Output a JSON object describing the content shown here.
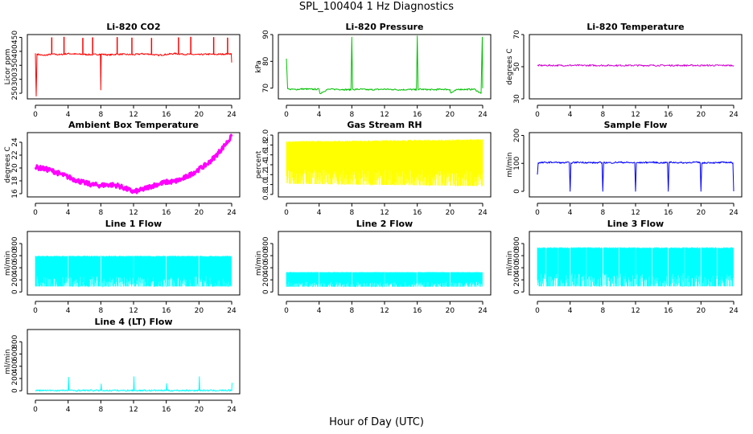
{
  "page": {
    "title": "SPL_100404  1 Hz Diagnostics",
    "xlabel": "Hour of Day (UTC)"
  },
  "chart_data": [
    {
      "type": "line",
      "title": "Li-820 CO2",
      "ylabel": "Licor ppm",
      "color": "#ff0000",
      "xlim": [
        0,
        24
      ],
      "xticks": [
        0,
        4,
        8,
        12,
        16,
        20,
        24
      ],
      "ylim": [
        230,
        460
      ],
      "yticks": [
        250,
        300,
        350,
        400,
        450
      ],
      "x": [
        0,
        0.1,
        0.2,
        1,
        2,
        3,
        4,
        5,
        6,
        7,
        7.95,
        8,
        8.05,
        9,
        10,
        11,
        12,
        13,
        14,
        15,
        16,
        17,
        18,
        19,
        20,
        21,
        22,
        23,
        23.95,
        24
      ],
      "y": [
        393,
        240,
        390,
        385,
        390,
        388,
        392,
        390,
        389,
        388,
        390,
        262,
        390,
        387,
        390,
        389,
        388,
        391,
        390,
        386,
        389,
        392,
        390,
        389,
        388,
        390,
        389,
        390,
        392,
        360
      ],
      "spikes_x": [
        2,
        3.5,
        5.8,
        7,
        10,
        11.8,
        14.2,
        17.5,
        19,
        21.8,
        23.5
      ],
      "spikes_y": [
        450,
        452,
        448,
        450,
        451,
        449,
        448,
        450,
        452,
        451,
        449
      ]
    },
    {
      "type": "line",
      "title": "Li-820 Pressure",
      "ylabel": "kPa",
      "color": "#00c000",
      "xlim": [
        0,
        24
      ],
      "xticks": [
        0,
        4,
        8,
        12,
        16,
        20,
        24
      ],
      "ylim": [
        66,
        90
      ],
      "yticks": [
        70,
        80,
        90
      ],
      "x": [
        0,
        0.15,
        0.3,
        1,
        2,
        3,
        4,
        4.1,
        5,
        6,
        7,
        7.9,
        8,
        8.1,
        9,
        10,
        11,
        12,
        13,
        14,
        15,
        15.9,
        16,
        16.1,
        17,
        18,
        19,
        20,
        20.1,
        21,
        22,
        23,
        23.8,
        23.95,
        24
      ],
      "y": [
        81,
        69.8,
        69.6,
        69.5,
        69.7,
        69.6,
        69.6,
        68,
        69.5,
        69.6,
        69.5,
        69.4,
        89,
        69.5,
        69.6,
        69.4,
        69.5,
        69.6,
        69.5,
        69.4,
        69.5,
        69.4,
        89.5,
        69.6,
        69.5,
        69.4,
        69.6,
        69.5,
        68.2,
        69.6,
        69.5,
        69.6,
        68,
        89,
        70
      ]
    },
    {
      "type": "line",
      "title": "Li-820 Temperature",
      "ylabel": "degrees C",
      "color": "#d000d0",
      "xlim": [
        0,
        24
      ],
      "xticks": [
        0,
        4,
        8,
        12,
        16,
        20,
        24
      ],
      "ylim": [
        30,
        70
      ],
      "yticks": [
        30,
        50,
        70
      ],
      "x": [
        0,
        24
      ],
      "y": [
        50.8,
        50.8
      ]
    },
    {
      "type": "line",
      "title": "Ambient Box Temperature",
      "ylabel": "degrees C",
      "color": "#ff00ff",
      "xlim": [
        0,
        24
      ],
      "xticks": [
        0,
        4,
        8,
        12,
        16,
        20,
        24
      ],
      "ylim": [
        15.5,
        25.5
      ],
      "yticks": [
        16,
        18,
        20,
        22,
        24
      ],
      "x": [
        0,
        1,
        2,
        3,
        4,
        5,
        6,
        7,
        8,
        9,
        10,
        11,
        12,
        13,
        14,
        15,
        16,
        17,
        18,
        19,
        20,
        21,
        22,
        23,
        24
      ],
      "y": [
        20.1,
        19.9,
        19.6,
        19.1,
        18.6,
        18.1,
        17.7,
        17.4,
        17.3,
        17.4,
        17.3,
        16.8,
        16.3,
        16.6,
        17.1,
        17.5,
        17.8,
        17.9,
        18.3,
        19.0,
        19.8,
        20.6,
        21.8,
        23.3,
        24.9
      ]
    },
    {
      "type": "area",
      "title": "Gas Stream RH",
      "ylabel": "percent",
      "color": "#ffff00",
      "xlim": [
        0,
        24
      ],
      "xticks": [
        0,
        4,
        8,
        12,
        16,
        20,
        24
      ],
      "ylim": [
        0.75,
        2.05
      ],
      "yticks": [
        0.8,
        1.0,
        1.2,
        1.4,
        1.6,
        1.8,
        2.0
      ],
      "x": [
        0,
        24
      ],
      "y_upper": [
        1.88,
        1.92
      ],
      "y_lower": [
        1.0,
        0.95
      ]
    },
    {
      "type": "line",
      "title": "Sample Flow",
      "ylabel": "ml/min",
      "color": "#0000ff",
      "xlim": [
        0,
        24
      ],
      "xticks": [
        0,
        4,
        8,
        12,
        16,
        20,
        24
      ],
      "ylim": [
        -20,
        210
      ],
      "yticks": [
        0,
        100,
        200
      ],
      "x": [
        0,
        0.1,
        1,
        2,
        3,
        3.9,
        4,
        4.1,
        5,
        6,
        7,
        7.9,
        8,
        8.1,
        9,
        10,
        11,
        11.9,
        12,
        12.1,
        13,
        14,
        15,
        15.9,
        16,
        16.1,
        17,
        18,
        19,
        19.9,
        20,
        20.1,
        21,
        22,
        23,
        23.9,
        24
      ],
      "y": [
        60,
        102,
        103,
        104,
        102,
        103,
        0,
        102,
        104,
        103,
        102,
        103,
        0,
        103,
        102,
        104,
        103,
        102,
        0,
        102,
        103,
        104,
        102,
        103,
        0,
        104,
        103,
        102,
        104,
        103,
        0,
        101,
        103,
        102,
        104,
        102,
        0
      ]
    },
    {
      "type": "area",
      "title": "Line 1 Flow",
      "ylabel": "ml/min",
      "color": "#00ffff",
      "xlim": [
        0,
        24
      ],
      "xticks": [
        0,
        4,
        8,
        12,
        16,
        20,
        24
      ],
      "ylim": [
        -50,
        1000
      ],
      "yticks": [
        0,
        200,
        400,
        600,
        800
      ],
      "x": [
        0,
        24
      ],
      "y_upper": [
        600,
        600
      ],
      "y_lower": [
        80,
        80
      ],
      "gaps_x": [
        4,
        8,
        12,
        16,
        20,
        24
      ]
    },
    {
      "type": "area",
      "title": "Line 2 Flow",
      "ylabel": "ml/min",
      "color": "#00ffff",
      "xlim": [
        0,
        24
      ],
      "xticks": [
        0,
        4,
        8,
        12,
        16,
        20,
        24
      ],
      "ylim": [
        -50,
        1000
      ],
      "yticks": [
        0,
        200,
        400,
        600,
        800
      ],
      "x": [
        0,
        24
      ],
      "y_upper": [
        330,
        330
      ],
      "y_lower": [
        80,
        80
      ],
      "gaps_x": [
        4,
        8,
        12,
        16,
        20,
        24
      ]
    },
    {
      "type": "area",
      "title": "Line 3 Flow",
      "ylabel": "ml/min",
      "color": "#00ffff",
      "xlim": [
        0,
        24
      ],
      "xticks": [
        0,
        4,
        8,
        12,
        16,
        20,
        24
      ],
      "ylim": [
        -50,
        1000
      ],
      "yticks": [
        0,
        200,
        400,
        600,
        800
      ],
      "x": [
        0,
        24
      ],
      "y_upper": [
        740,
        740
      ],
      "y_lower": [
        80,
        80
      ],
      "gaps_x": [
        1,
        2.5,
        4,
        6,
        8,
        10,
        12,
        14,
        16,
        18,
        20,
        22,
        24
      ]
    },
    {
      "type": "line",
      "title": "Line 4 (LT) Flow",
      "ylabel": "ml/min",
      "color": "#00ffff",
      "xlim": [
        0,
        24
      ],
      "xticks": [
        0,
        4,
        8,
        12,
        16,
        20,
        24
      ],
      "ylim": [
        -50,
        1000
      ],
      "yticks": [
        0,
        200,
        400,
        600,
        800
      ],
      "x": [
        0,
        4,
        4.05,
        4.1,
        8,
        8.05,
        8.1,
        12,
        12.05,
        12.1,
        16,
        16.05,
        16.1,
        20,
        20.05,
        20.1,
        24,
        24.05
      ],
      "y": [
        5,
        5,
        220,
        5,
        5,
        110,
        5,
        5,
        230,
        5,
        5,
        115,
        5,
        5,
        230,
        5,
        5,
        130
      ]
    }
  ]
}
